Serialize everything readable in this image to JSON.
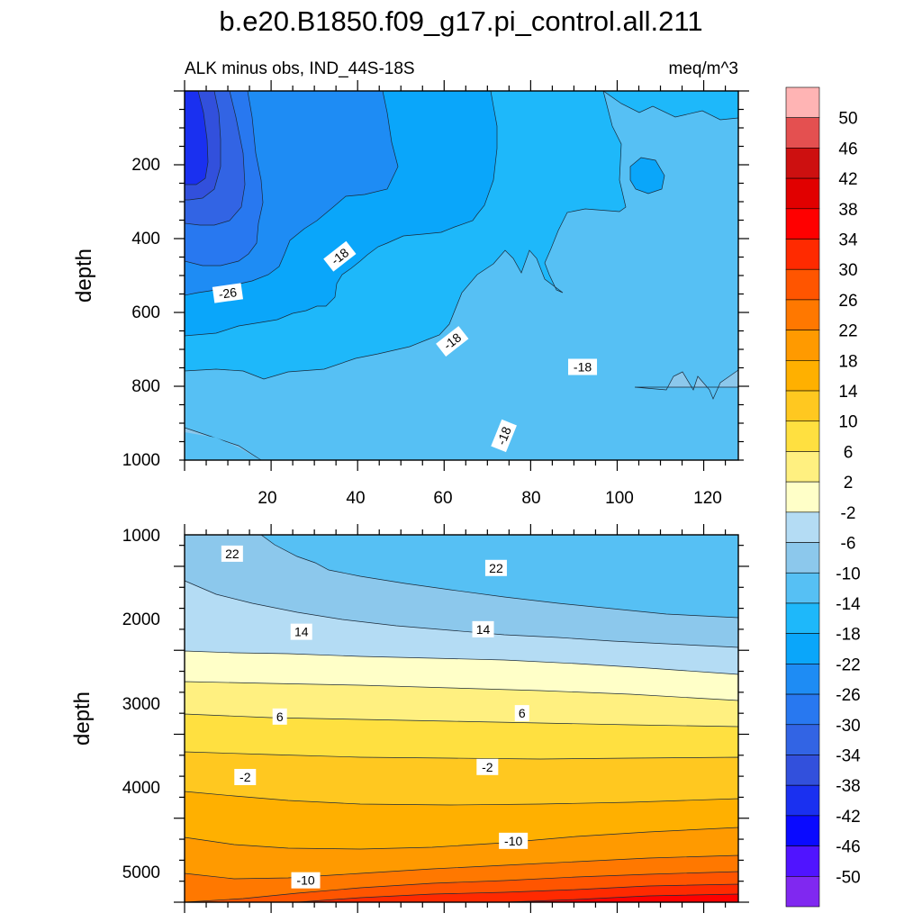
{
  "title": "b.e20.B1850.f09_g17.pi_control.all.211",
  "chart_data": [
    {
      "type": "contour",
      "panel": "upper",
      "subtitle_left": "ALK minus obs, IND_44S-18S",
      "subtitle_right": "meq/m^3",
      "ylabel": "depth",
      "xlabel": "",
      "xlim": [
        0,
        128
      ],
      "ylim": [
        1000,
        0
      ],
      "x_ticks": [
        20,
        40,
        60,
        80,
        100,
        120
      ],
      "x_tick_labels": [
        "20",
        "40",
        "60",
        "80",
        "100",
        "120"
      ],
      "y_ticks": [
        200,
        400,
        600,
        800,
        1000
      ],
      "y_tick_labels": [
        "200",
        "400",
        "600",
        "800",
        "1000"
      ],
      "contour_labels": [
        {
          "text": "-26",
          "x": 10,
          "y": 450
        },
        {
          "text": "-18",
          "x": 36,
          "y": 550
        },
        {
          "text": "-18",
          "x": 62,
          "y": 320
        },
        {
          "text": "-18",
          "x": 74,
          "y": 65
        },
        {
          "text": "-18",
          "x": 92,
          "y": 250
        }
      ]
    },
    {
      "type": "contour",
      "panel": "lower",
      "subtitle_left": "",
      "subtitle_right": "",
      "ylabel": "depth",
      "xlabel": "",
      "xlim": [
        0,
        128
      ],
      "ylim": [
        5375,
        1000
      ],
      "x_ticks": [
        20,
        40,
        60,
        80,
        100,
        120
      ],
      "y_ticks": [
        1000,
        2000,
        3000,
        4000,
        5000
      ],
      "y_tick_labels": [
        "1000",
        "2000",
        "3000",
        "4000",
        "5000"
      ],
      "contour_labels": [
        {
          "text": "-10",
          "x": 28,
          "y": 1250
        },
        {
          "text": "-10",
          "x": 76,
          "y": 1720
        },
        {
          "text": "-2",
          "x": 14,
          "y": 2480
        },
        {
          "text": "-2",
          "x": 70,
          "y": 2600
        },
        {
          "text": "6",
          "x": 22,
          "y": 3200
        },
        {
          "text": "6",
          "x": 78,
          "y": 3240
        },
        {
          "text": "14",
          "x": 27,
          "y": 4210
        },
        {
          "text": "14",
          "x": 69,
          "y": 4240
        },
        {
          "text": "22",
          "x": 11,
          "y": 5140
        },
        {
          "text": "22",
          "x": 72,
          "y": 4970
        }
      ]
    }
  ],
  "colorbar": {
    "labels": [
      "50",
      "46",
      "42",
      "38",
      "34",
      "30",
      "26",
      "22",
      "18",
      "14",
      "10",
      "6",
      "2",
      "-2",
      "-6",
      "-10",
      "-14",
      "-18",
      "-22",
      "-26",
      "-30",
      "-34",
      "-38",
      "-42",
      "-46",
      "-50"
    ],
    "colors": [
      "#ffb4b4",
      "#e45050",
      "#cd1010",
      "#e10000",
      "#ff0000",
      "#ff2a00",
      "#ff5500",
      "#ff7800",
      "#ff9a00",
      "#ffb000",
      "#ffc820",
      "#ffe040",
      "#fff080",
      "#ffffc8",
      "#b4dcf4",
      "#8cc8ec",
      "#56c0f4",
      "#1eb8fa",
      "#0aa6fa",
      "#1e8cf4",
      "#2878f0",
      "#3264e4",
      "#3250dc",
      "#1a30f0",
      "#0a0aff",
      "#5014ff",
      "#8028f0"
    ]
  },
  "palette": {
    "c_m50": "#8028f0",
    "c_m46": "#5014ff",
    "c_m42": "#0a0aff",
    "c_m38": "#1a30f0",
    "c_m34": "#3250dc",
    "c_m30": "#3264e4",
    "c_m26": "#2878f0",
    "c_m22": "#1e8cf4",
    "c_m18": "#0aa6fa",
    "c_m14": "#1eb8fa",
    "c_m10": "#56c0f4",
    "c_m6": "#8cc8ec",
    "c_m2": "#b4dcf4",
    "c_2": "#ffffc8",
    "c_6": "#fff080",
    "c_10": "#ffe040",
    "c_14": "#ffc820",
    "c_18": "#ffb000",
    "c_22": "#ff9a00",
    "c_26": "#ff7800",
    "c_30": "#ff5500",
    "c_34": "#ff2a00"
  }
}
